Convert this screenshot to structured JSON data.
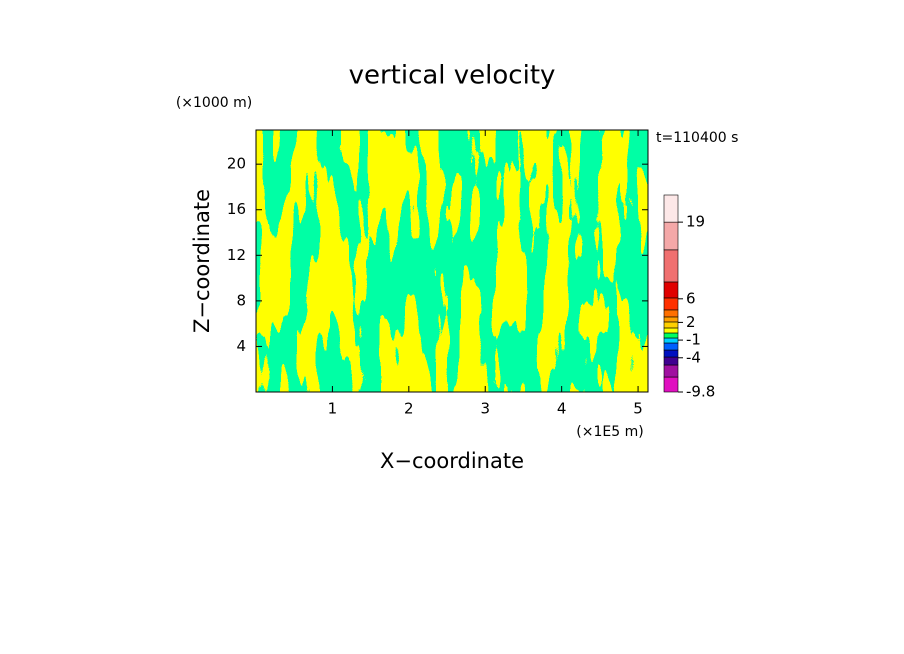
{
  "chart_data": {
    "type": "contour",
    "title": "vertical velocity",
    "x_label": "X−coordinate",
    "y_label": "Z−coordinate",
    "x_unit": "(×1E5 m)",
    "y_unit": "(×1000 m)",
    "annotation": "t=110400 s",
    "xlim": [
      0,
      5.13
    ],
    "ylim": [
      0,
      23
    ],
    "xticks": [
      1,
      2,
      3,
      4,
      5
    ],
    "yticks": [
      4,
      8,
      12,
      16,
      20
    ],
    "colorbar": {
      "levels": [
        -9.8,
        -7.26,
        -5.22,
        -3.87,
        -2.68,
        -1.49,
        -0.64,
        0.21,
        1.06,
        2.08,
        2.93,
        4.12,
        6.15,
        8.86,
        14.3,
        19,
        23.6
      ],
      "colors": [
        "#e010c0",
        "#a010a0",
        "#400090",
        "#0010c0",
        "#0060ff",
        "#00d0ff",
        "#00ff60",
        "#ffff00",
        "#ffd000",
        "#ffa000",
        "#ff7000",
        "#ff3000",
        "#e00000",
        "#f07070",
        "#f4a8a8",
        "#fde8e8"
      ],
      "ticks": [
        -9.8,
        -4,
        -1,
        2,
        6,
        19
      ]
    }
  }
}
